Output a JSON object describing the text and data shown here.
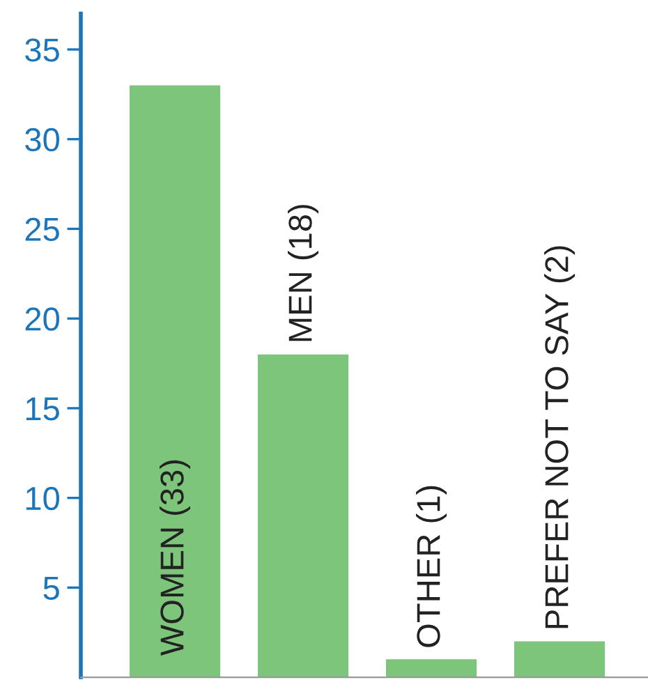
{
  "chart_data": {
    "type": "bar",
    "categories": [
      "WOMEN (33)",
      "MEN (18)",
      "OTHER (1)",
      "PREFER NOT TO SAY (2)"
    ],
    "values": [
      33,
      18,
      1,
      2
    ],
    "color": "#7dc57a",
    "ylim": [
      0,
      37
    ],
    "yticks": [
      5,
      10,
      15,
      20,
      25,
      30,
      35
    ],
    "grid": false,
    "legend": false
  }
}
